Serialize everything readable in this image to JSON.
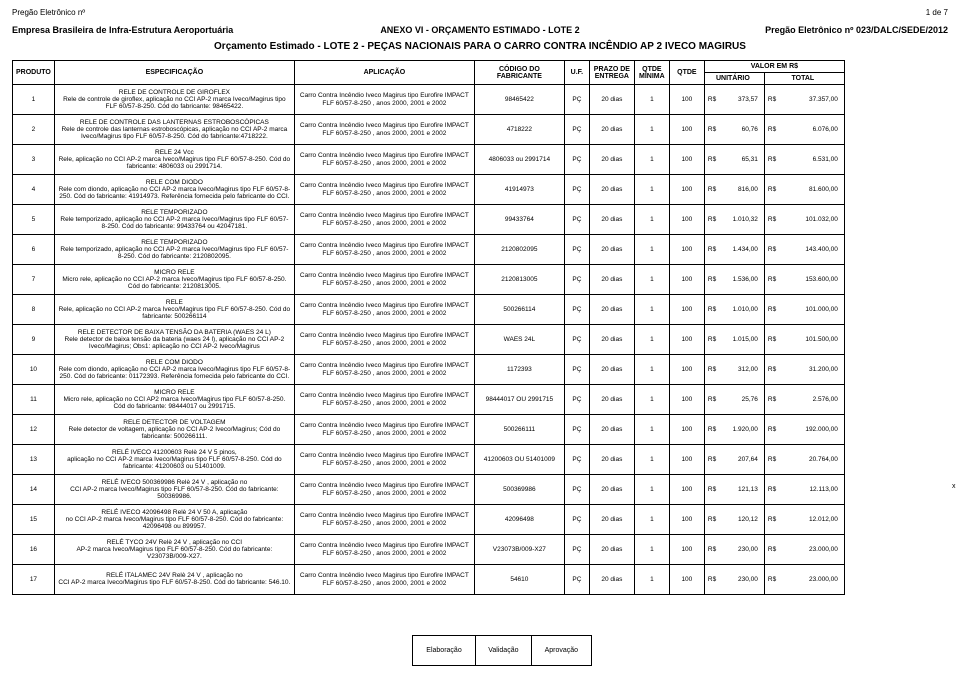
{
  "header": {
    "top_left": "Pregão Eletrônico nº",
    "top_right": "1 de 7",
    "company": "Empresa Brasileira de Infra-Estrutura Aeroportuária",
    "anexo": "ANEXO VI - ORÇAMENTO ESTIMADO - LOTE 2",
    "pregao": "Pregão Eletrônico nº  023/DALC/SEDE/2012",
    "title": "Orçamento Estimado - LOTE 2 - PEÇAS NACIONAIS PARA O CARRO CONTRA INCÊNDIO AP 2 IVECO MAGIRUS"
  },
  "columns": {
    "produto": "PRODUTO",
    "espec": "ESPECIFICAÇÃO",
    "aplic": "APLICAÇÃO",
    "codigo": "CÓDIGO DO FABRICANTE",
    "uf": "U.F.",
    "prazo": "PRAZO DE ENTREGA",
    "qmin": "QTDE MÍNIMA",
    "qtde": "QTDE",
    "valor": "VALOR EM R$",
    "unit": "UNITÁRIO",
    "total": "TOTAL"
  },
  "aplicacao_default": "Carro Contra Incêndio Iveco Magirus tipo Eurofire IMPACT FLF 60/57-8-250 , anos 2000, 2001 e 2002",
  "rows": [
    {
      "n": "1",
      "title": "RELE DE CONTROLE DE GIROFLEX",
      "body": "Rele de controle de giroflex, aplicação no  CCI AP-2 marca Iveco/Magirus tipo FLF 60/57-8-250. Cód do fabricante: 98465422.",
      "cod": "98465422",
      "uf": "PÇ",
      "prazo": "20 dias",
      "qmin": "1",
      "qtde": "100",
      "unit": "373,57",
      "tot": "37.357,00"
    },
    {
      "n": "2",
      "title": "RELE DE CONTROLE DAS LANTERNAS ESTROBOSCÓPICAS",
      "body": "Rele de controle das lanternas estroboscópicas, aplicação no  CCI AP-2 marca Iveco/Magirus tipo FLF 60/57-8-250. Cód do fabricante:4718222.",
      "cod": "4718222",
      "uf": "PÇ",
      "prazo": "20 dias",
      "qmin": "1",
      "qtde": "100",
      "unit": "60,76",
      "tot": "6.076,00"
    },
    {
      "n": "3",
      "title": "RELE 24 Vcc",
      "body": "Rele, aplicação no CCI AP-2 marca Iveco/Magirus tipo FLF 60/57-8-250. Cód do fabricante: 4806033 ou 2991714.",
      "cod": "4806033 ou 2991714",
      "uf": "PÇ",
      "prazo": "20 dias",
      "qmin": "1",
      "qtde": "100",
      "unit": "65,31",
      "tot": "6.531,00"
    },
    {
      "n": "4",
      "title": "RELE COM DIODO",
      "body": "Rele com diondo, aplicação no CCI AP-2 marca Iveco/Magirus tipo FLF 60/57-8-250. Cód do fabricante: 41914973. Referência fornecida pelo fabricante do CCI.",
      "cod": "41914973",
      "uf": "PÇ",
      "prazo": "20 dias",
      "qmin": "1",
      "qtde": "100",
      "unit": "816,00",
      "tot": "81.600,00"
    },
    {
      "n": "5",
      "title": "RELE TEMPORIZADO",
      "body": "Rele temporizado, aplicação no CCI AP-2 marca Iveco/Magirus tipo FLF 60/57-8-250. Cód do fabricante: 99433764 ou 42047181.",
      "cod": "99433764",
      "uf": "PÇ",
      "prazo": "20 dias",
      "qmin": "1",
      "qtde": "100",
      "unit": "1.010,32",
      "tot": "101.032,00"
    },
    {
      "n": "6",
      "title": "RELE TEMPORIZADO",
      "body": "Rele temporizado, aplicação no CCI AP-2 marca Iveco/Magirus tipo FLF 60/57-8-250. Cód do fabricante: 2120802095.",
      "cod": "2120802095",
      "uf": "PÇ",
      "prazo": "20 dias",
      "qmin": "1",
      "qtde": "100",
      "unit": "1.434,00",
      "tot": "143.400,00"
    },
    {
      "n": "7",
      "title": "MICRO RELE",
      "body": "Micro rele, aplicação no CCI AP-2 marca Iveco/Magirus tipo FLF 60/57-8-250. Cód do fabricante: 2120813005.",
      "cod": "2120813005",
      "uf": "PÇ",
      "prazo": "20 dias",
      "qmin": "1",
      "qtde": "100",
      "unit": "1.536,00",
      "tot": "153.600,00"
    },
    {
      "n": "8",
      "title": "RELE",
      "body": "Rele, aplicação no CCI AP-2 marca Iveco/Magirus tipo FLF 60/57-8-250. Cód do fabricante: 500266114",
      "cod": "500266114",
      "uf": "PÇ",
      "prazo": "20 dias",
      "qmin": "1",
      "qtde": "100",
      "unit": "1.010,00",
      "tot": "101.000,00"
    },
    {
      "n": "9",
      "title": "RELE DETECTOR DE BAIXA TENSÃO DA BATERIA (WAES 24 L)",
      "body": "Rele detector de baixa tensão da bateria (waes 24 l), aplicação no CCI AP-2 Iveco/Magirus; Obs1: aplicação no  CCI AP-2 Iveco/Magirus",
      "cod": "WAES 24L",
      "uf": "PÇ",
      "prazo": "20 dias",
      "qmin": "1",
      "qtde": "100",
      "unit": "1.015,00",
      "tot": "101.500,00"
    },
    {
      "n": "10",
      "title": "RELE COM DIODO",
      "body": "Rele com diondo, aplicação no CCI AP-2 marca Iveco/Magirus tipo FLF 60/57-8-250. Cód do fabricante: 01172393. Referência fornecida pelo fabricante do CCI.",
      "cod": "1172393",
      "uf": "PÇ",
      "prazo": "20 dias",
      "qmin": "1",
      "qtde": "100",
      "unit": "312,00",
      "tot": "31.200,00"
    },
    {
      "n": "11",
      "title": "MICRO RELE",
      "body": "Micro rele, aplicação no CCI AP2 marca Iveco/Magirus tipo FLF 60/57-8-250. Cód do fabricante: 98444017 ou 2991715.",
      "cod": "98444017 OU 2991715",
      "uf": "PÇ",
      "prazo": "20 dias",
      "qmin": "1",
      "qtde": "100",
      "unit": "25,76",
      "tot": "2.576,00"
    },
    {
      "n": "12",
      "title": "RELE DETECTOR DE VOLTAGEM",
      "body": "Rele detector de voltagem, aplicação no CCI AP-2 Iveco/Magirus; Cód do fabricante: 500266111.",
      "cod": "500266111",
      "uf": "PÇ",
      "prazo": "20 dias",
      "qmin": "1",
      "qtde": "100",
      "unit": "1.920,00",
      "tot": "192.000,00"
    },
    {
      "n": "13",
      "title": "RELÉ IVECO 41200603                              Relè 24 V  5 pinos,",
      "body": "aplicação no CCI AP-2 marca Iveco/Magirus tipo FLF 60/57-8-250. Cód do fabricante: 41200603 ou 51401009.",
      "cod": "41200603 OU 51401009",
      "uf": "PÇ",
      "prazo": "20 dias",
      "qmin": "1",
      "qtde": "100",
      "unit": "207,64",
      "tot": "20.764,00"
    },
    {
      "n": "14",
      "title": "RELÉ IVECO 500369986                             Relè 24 V , aplicação no",
      "body": "CCI AP-2 marca Iveco/Magirus tipo FLF 60/57-8-250. Cód do fabricante: 500369986.",
      "cod": "500369986",
      "uf": "PÇ",
      "prazo": "20 dias",
      "qmin": "1",
      "qtde": "100",
      "unit": "121,13",
      "tot": "12.113,00",
      "xmark": true
    },
    {
      "n": "15",
      "title": "RELÉ IVECO 42096498                              Relè 24 V  50 A, aplicação",
      "body": "no CCI AP-2 marca Iveco/Magirus tipo FLF 60/57-8-250. Cód do fabricante: 42096498 ou 899957.",
      "cod": "42096498",
      "uf": "PÇ",
      "prazo": "20 dias",
      "qmin": "1",
      "qtde": "100",
      "unit": "120,12",
      "tot": "12.012,00"
    },
    {
      "n": "16",
      "title": "RELÉ TYCO 24V                                           Relè 24 V , aplicação no CCI",
      "body": "AP-2 marca Iveco/Magirus tipo FLF 60/57-8-250. Cód do fabricante: V23073B/009-X27.",
      "cod": "V23073B/009-X27",
      "uf": "PÇ",
      "prazo": "20 dias",
      "qmin": "1",
      "qtde": "100",
      "unit": "230,00",
      "tot": "23.000,00"
    },
    {
      "n": "17",
      "title": "RELÉ ITALAMEC 24V                                     Relè 24 V , aplicação no",
      "body": "CCI AP-2 marca Iveco/Magirus tipo FLF 60/57-8-250. Cód do fabricante: 546.10.",
      "cod": "54610",
      "uf": "PÇ",
      "prazo": "20 dias",
      "qmin": "1",
      "qtde": "100",
      "unit": "230,00",
      "tot": "23.000,00"
    }
  ],
  "footer": {
    "c1": "Elaboração",
    "c2": "Validação",
    "c3": "Aprovação"
  }
}
